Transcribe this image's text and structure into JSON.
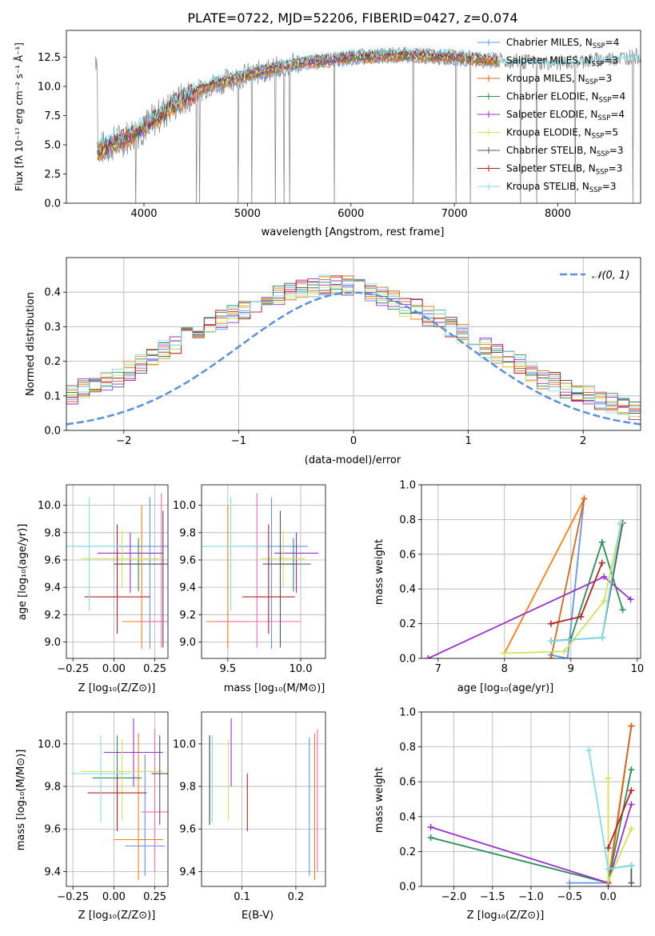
{
  "chart_data": [
    {
      "id": "spectrum",
      "type": "line",
      "title": "PLATE=0722, MJD=52206, FIBERID=0427, z=0.074",
      "xlabel": "wavelength [Angstrom, rest frame]",
      "ylabel": "Flux [fλ 10⁻¹⁷ erg cm⁻² s⁻¹ Å⁻¹]",
      "xlim": [
        3250,
        8800
      ],
      "ylim": [
        0,
        14.8
      ],
      "xticks": [
        4000,
        5000,
        6000,
        7000,
        8000
      ],
      "yticks": [
        0.0,
        2.5,
        5.0,
        7.5,
        10.0,
        12.5
      ],
      "legend_position": "upper-right",
      "grid": false,
      "data_range": [
        3530,
        8800
      ],
      "data_color": "#808080",
      "data_approx": {
        "x": [
          3550,
          3800,
          4000,
          4300,
          4600,
          5000,
          5500,
          6000,
          6500,
          7000,
          7400,
          8000,
          8800
        ],
        "y": [
          4.5,
          5.5,
          6.5,
          8.5,
          10.0,
          11.0,
          12.0,
          12.5,
          12.7,
          12.5,
          12.2,
          12.0,
          12.6
        ]
      },
      "series": [
        {
          "name": "Chabrier MILES, N_SSP=4",
          "color": "#6495ed"
        },
        {
          "name": "Salpeter MILES, N_SSP=3",
          "color": "#ff7f0e"
        },
        {
          "name": "Kroupa MILES, N_SSP=3",
          "color": "#d2691e"
        },
        {
          "name": "Chabrier ELODIE, N_SSP=4",
          "color": "#2e8b57"
        },
        {
          "name": "Salpeter ELODIE, N_SSP=4",
          "color": "#9932cc"
        },
        {
          "name": "Kroupa ELODIE, N_SSP=5",
          "color": "#d4e157"
        },
        {
          "name": "Chabrier STELIB, N_SSP=3",
          "color": "#555555"
        },
        {
          "name": "Salpeter STELIB, N_SSP=3",
          "color": "#b22222"
        },
        {
          "name": "Kroupa STELIB, N_SSP=3",
          "color": "#80deea"
        }
      ]
    },
    {
      "id": "residuals",
      "type": "line",
      "xlabel": "(data-model)/error",
      "ylabel": "Normed distribution",
      "xlim": [
        -2.5,
        2.5
      ],
      "ylim": [
        0,
        0.5
      ],
      "xticks": [
        -2,
        -1,
        0,
        1,
        2
      ],
      "yticks": [
        0.0,
        0.1,
        0.2,
        0.3,
        0.4
      ],
      "grid": true,
      "legend_position": "upper-right",
      "gaussian": {
        "name": "N(0,1)",
        "color": "#5b8fd9",
        "mean": 0,
        "sigma": 1
      },
      "bin_width": 0.1,
      "base_hist": [
        0.02,
        0.03,
        0.03,
        0.04,
        0.05,
        0.06,
        0.07,
        0.08,
        0.09,
        0.1,
        0.12,
        0.13,
        0.14,
        0.15,
        0.17,
        0.19,
        0.21,
        0.23,
        0.25,
        0.27,
        0.29,
        0.31,
        0.32,
        0.34,
        0.35,
        0.37,
        0.38,
        0.39,
        0.4,
        0.41,
        0.41,
        0.42,
        0.42,
        0.42,
        0.41,
        0.4,
        0.39,
        0.38,
        0.36,
        0.35,
        0.33,
        0.32,
        0.3,
        0.28,
        0.26,
        0.24,
        0.22,
        0.21,
        0.19,
        0.17,
        0.15,
        0.14,
        0.12,
        0.11,
        0.1,
        0.09,
        0.08,
        0.07,
        0.06,
        0.05,
        0.04,
        0.04,
        0.03,
        0.03,
        0.02,
        0.02,
        0.02,
        0.02,
        0.02
      ],
      "hist_colors": [
        "#6495ed",
        "#ff7f0e",
        "#d2691e",
        "#2e8b57",
        "#9932cc",
        "#d4e157",
        "#555555",
        "#b22222",
        "#80deea"
      ]
    },
    {
      "id": "age-z",
      "type": "scatter",
      "xlabel": "Z [log₁₀(Z/Z⊙)]",
      "ylabel": "age  [log₁₀(age/yr)]",
      "xlim": [
        -0.29,
        0.33
      ],
      "ylim": [
        8.88,
        10.15
      ],
      "xticks": [
        -0.25,
        0.0,
        0.25
      ],
      "yticks": [
        9.0,
        9.2,
        9.4,
        9.6,
        9.8,
        10.0
      ],
      "grid": true,
      "points": [
        {
          "color": "#6495ed",
          "x": 0.22,
          "y": 9.7,
          "xerr": 0.48,
          "yerr": [
            8.95,
            10.06
          ]
        },
        {
          "color": "#ff7f0e",
          "x": 0.17,
          "y": 9.15,
          "xerr": 0.12,
          "yerr": [
            8.95,
            10.0
          ]
        },
        {
          "color": "#ff69b4",
          "x": 0.29,
          "y": 9.15,
          "xerr": 0.15,
          "yerr": [
            8.96,
            10.09
          ]
        },
        {
          "color": "#2e8b57",
          "x": 0.15,
          "y": 9.57,
          "xerr": 0.15,
          "yerr": [
            9.37,
            9.76
          ]
        },
        {
          "color": "#9932cc",
          "x": 0.1,
          "y": 9.65,
          "xerr": 0.2,
          "yerr": [
            9.36,
            9.8
          ]
        },
        {
          "color": "#d4e157",
          "x": 0.05,
          "y": 9.61,
          "xerr": 0.25,
          "yerr": [
            9.4,
            9.82
          ]
        },
        {
          "color": "#555555",
          "x": 0.3,
          "y": 9.57,
          "xerr": 0.3,
          "yerr": [
            8.96,
            9.96
          ]
        },
        {
          "color": "#b22222",
          "x": 0.02,
          "y": 9.33,
          "xerr": 0.2,
          "yerr": [
            9.06,
            9.86
          ]
        },
        {
          "color": "#80deea",
          "x": -0.15,
          "y": 9.7,
          "xerr": 0.18,
          "yerr": [
            9.23,
            10.06
          ]
        }
      ]
    },
    {
      "id": "age-mass",
      "type": "scatter",
      "xlabel": "mass [log₁₀(M/M⊙)]",
      "xlim": [
        9.32,
        10.17
      ],
      "ylim": [
        8.88,
        10.15
      ],
      "xticks": [
        9.5,
        10.0
      ],
      "yticks": [
        9.0,
        9.2,
        9.4,
        9.6,
        9.8,
        10.0
      ],
      "grid": true,
      "points": [
        {
          "color": "#6495ed",
          "x": 9.8,
          "y": 9.7,
          "xerr": 0.25,
          "yerr": [
            8.95,
            10.06
          ]
        },
        {
          "color": "#ff7f0e",
          "x": 9.5,
          "y": 9.15,
          "xerr": 0.15,
          "yerr": [
            8.95,
            10.0
          ]
        },
        {
          "color": "#ff69b4",
          "x": 9.7,
          "y": 9.15,
          "xerr": 0.3,
          "yerr": [
            8.96,
            10.09
          ]
        },
        {
          "color": "#2e8b57",
          "x": 9.95,
          "y": 9.57,
          "xerr": 0.12,
          "yerr": [
            9.37,
            9.76
          ]
        },
        {
          "color": "#9932cc",
          "x": 9.97,
          "y": 9.65,
          "xerr": 0.15,
          "yerr": [
            9.36,
            9.8
          ]
        },
        {
          "color": "#d4e157",
          "x": 9.88,
          "y": 9.61,
          "xerr": 0.15,
          "yerr": [
            9.4,
            9.82
          ]
        },
        {
          "color": "#555555",
          "x": 9.86,
          "y": 9.57,
          "xerr": 0.12,
          "yerr": [
            8.96,
            9.96
          ]
        },
        {
          "color": "#b22222",
          "x": 9.78,
          "y": 9.33,
          "xerr": 0.18,
          "yerr": [
            9.06,
            9.86
          ]
        },
        {
          "color": "#80deea",
          "x": 9.52,
          "y": 9.7,
          "xerr": 0.25,
          "yerr": [
            9.23,
            10.06
          ]
        }
      ]
    },
    {
      "id": "weight-age",
      "type": "line",
      "xlabel": "age  [log₁₀(age/yr)]",
      "ylabel": "mass weight",
      "xlim": [
        6.75,
        10.05
      ],
      "ylim": [
        0,
        1
      ],
      "xticks": [
        7,
        8,
        9,
        10
      ],
      "yticks": [
        0.0,
        0.2,
        0.4,
        0.6,
        0.8,
        1.0
      ],
      "grid": true,
      "series": [
        {
          "color": "#6495ed",
          "x": [
            8.7,
            8.95,
            9.2
          ],
          "y": [
            0.02,
            0.0,
            0.92
          ]
        },
        {
          "color": "#ff7f0e",
          "x": [
            8.0,
            9.2
          ],
          "y": [
            0.03,
            0.92
          ]
        },
        {
          "color": "#d2691e",
          "x": [
            8.7,
            9.2
          ],
          "y": [
            0.0,
            0.92
          ]
        },
        {
          "color": "#2e8b57",
          "x": [
            8.7,
            9.0,
            9.47,
            9.78
          ],
          "y": [
            0.1,
            0.11,
            0.67,
            0.28
          ]
        },
        {
          "color": "#9932cc",
          "x": [
            6.85,
            9.5,
            9.9
          ],
          "y": [
            0.0,
            0.47,
            0.34
          ]
        },
        {
          "color": "#d4e157",
          "x": [
            8.0,
            8.9,
            9.5,
            9.75
          ],
          "y": [
            0.03,
            0.04,
            0.33,
            0.77
          ]
        },
        {
          "color": "#555555",
          "x": [
            8.7,
            9.47,
            9.78
          ],
          "y": [
            0.1,
            0.12,
            0.78
          ]
        },
        {
          "color": "#b22222",
          "x": [
            8.7,
            9.15,
            9.47
          ],
          "y": [
            0.2,
            0.24,
            0.55
          ]
        },
        {
          "color": "#80deea",
          "x": [
            8.7,
            9.47,
            9.75
          ],
          "y": [
            0.1,
            0.12,
            0.78
          ]
        }
      ]
    },
    {
      "id": "mass-z",
      "type": "scatter",
      "xlabel": "Z [log₁₀(Z/Z⊙)]",
      "ylabel": "mass [log₁₀(M/M⊙)]",
      "xlim": [
        -0.29,
        0.33
      ],
      "ylim": [
        9.33,
        10.15
      ],
      "xticks": [
        -0.25,
        0.0,
        0.25
      ],
      "yticks": [
        9.4,
        9.6,
        9.8,
        10.0
      ],
      "grid": true,
      "points": [
        {
          "color": "#6495ed",
          "x": 0.19,
          "y": 9.52,
          "xerr": 0.12,
          "yerr": [
            9.38,
            9.95
          ]
        },
        {
          "color": "#ff7f0e",
          "x": 0.15,
          "y": 9.55,
          "xerr": 0.15,
          "yerr": [
            9.36,
            10.05
          ]
        },
        {
          "color": "#ff69b4",
          "x": 0.25,
          "y": 9.68,
          "xerr": 0.08,
          "yerr": [
            9.4,
            10.07
          ]
        },
        {
          "color": "#2e8b57",
          "x": 0.02,
          "y": 9.84,
          "xerr": 0.15,
          "yerr": [
            9.62,
            10.04
          ]
        },
        {
          "color": "#9932cc",
          "x": 0.12,
          "y": 9.96,
          "xerr": 0.18,
          "yerr": [
            9.8,
            10.12
          ]
        },
        {
          "color": "#d4e157",
          "x": 0.05,
          "y": 9.87,
          "xerr": 0.25,
          "yerr": [
            9.64,
            10.02
          ]
        },
        {
          "color": "#555555",
          "x": 0.28,
          "y": 9.86,
          "xerr": 0.05,
          "yerr": [
            9.62,
            10.04
          ]
        },
        {
          "color": "#b22222",
          "x": 0.02,
          "y": 9.77,
          "xerr": 0.18,
          "yerr": [
            9.59,
            9.86
          ]
        },
        {
          "color": "#80deea",
          "x": -0.08,
          "y": 9.86,
          "xerr": 0.18,
          "yerr": [
            9.63,
            10.04
          ]
        }
      ]
    },
    {
      "id": "mass-ebv",
      "type": "scatter",
      "xlabel": "E(B-V)",
      "xlim": [
        0.025,
        0.255
      ],
      "ylim": [
        9.33,
        10.15
      ],
      "xticks": [
        0.1,
        0.2
      ],
      "yticks": [
        9.4,
        9.6,
        9.8,
        10.0
      ],
      "grid": true,
      "points": [
        {
          "color": "#6495ed",
          "x": 0.225,
          "y": 9.7,
          "yerr": [
            9.38,
            10.03
          ]
        },
        {
          "color": "#ff7f0e",
          "x": 0.235,
          "y": 9.7,
          "yerr": [
            9.36,
            10.05
          ]
        },
        {
          "color": "#ff69b4",
          "x": 0.24,
          "y": 9.75,
          "yerr": [
            9.4,
            10.07
          ]
        },
        {
          "color": "#2e8b57",
          "x": 0.04,
          "y": 9.84,
          "yerr": [
            9.62,
            10.04
          ]
        },
        {
          "color": "#9932cc",
          "x": 0.08,
          "y": 9.96,
          "yerr": [
            9.8,
            10.12
          ]
        },
        {
          "color": "#d4e157",
          "x": 0.075,
          "y": 9.87,
          "yerr": [
            9.64,
            10.02
          ]
        },
        {
          "color": "#555555",
          "x": 0.04,
          "y": 9.86,
          "yerr": [
            9.62,
            10.04
          ]
        },
        {
          "color": "#b22222",
          "x": 0.11,
          "y": 9.77,
          "yerr": [
            9.59,
            9.86
          ]
        },
        {
          "color": "#80deea",
          "x": 0.045,
          "y": 9.86,
          "yerr": [
            9.63,
            10.04
          ]
        }
      ]
    },
    {
      "id": "weight-z",
      "type": "line",
      "xlabel": "Z [log₁₀(Z/Z⊙)]",
      "ylabel": "mass weight",
      "xlim": [
        -2.42,
        0.42
      ],
      "ylim": [
        0,
        1
      ],
      "xticks": [
        -2.0,
        -1.5,
        -1.0,
        -0.5,
        0.0
      ],
      "yticks": [
        0.0,
        0.2,
        0.4,
        0.6,
        0.8,
        1.0
      ],
      "grid": true,
      "series": [
        {
          "color": "#6495ed",
          "x": [
            -0.5,
            0.0,
            0.3
          ],
          "y": [
            0.02,
            0.02,
            0.92
          ]
        },
        {
          "color": "#ff7f0e",
          "x": [
            0.0,
            0.3
          ],
          "y": [
            0.03,
            0.92
          ]
        },
        {
          "color": "#d2691e",
          "x": [
            0.0,
            0.3
          ],
          "y": [
            0.0,
            0.92
          ]
        },
        {
          "color": "#2e8b57",
          "x": [
            -2.3,
            0.0,
            0.3
          ],
          "y": [
            0.28,
            0.02,
            0.67
          ]
        },
        {
          "color": "#9932cc",
          "x": [
            -2.3,
            0.0,
            0.3
          ],
          "y": [
            0.34,
            0.02,
            0.47
          ]
        },
        {
          "color": "#d4e157",
          "x": [
            0.0,
            0.0,
            0.3
          ],
          "y": [
            0.62,
            0.03,
            0.33
          ]
        },
        {
          "color": "#555555",
          "x": [
            0.0,
            0.3,
            0.3
          ],
          "y": [
            0.1,
            0.12,
            0.02
          ]
        },
        {
          "color": "#b22222",
          "x": [
            0.0,
            0.3
          ],
          "y": [
            0.22,
            0.55
          ]
        },
        {
          "color": "#80deea",
          "x": [
            -0.25,
            0.0,
            0.3
          ],
          "y": [
            0.78,
            0.1,
            0.12
          ]
        }
      ]
    }
  ]
}
